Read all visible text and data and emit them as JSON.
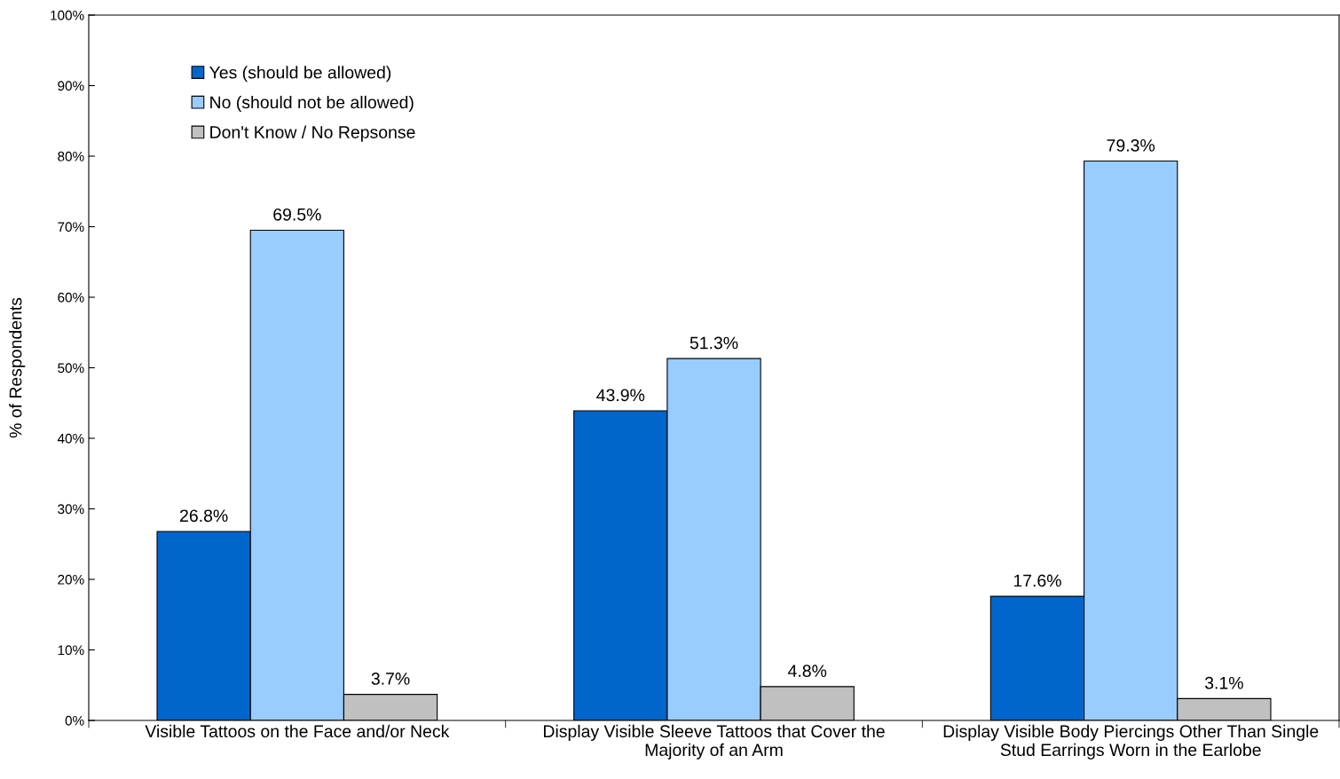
{
  "chart_data": {
    "type": "bar",
    "ylabel": "% of Respondents",
    "categories": [
      "Visible Tattoos on the Face and/or Neck",
      "Display Visible Sleeve Tattoos that Cover the\nMajority of an Arm",
      "Display Visible Body Piercings Other Than Single\nStud Earrings Worn in the Earlobe"
    ],
    "series": [
      {
        "name": "Yes (should be allowed)",
        "color": "#0066cc",
        "values": [
          26.8,
          43.9,
          17.6
        ],
        "value_labels": [
          "26.8%",
          "43.9%",
          "17.6%"
        ]
      },
      {
        "name": "No (should not be allowed)",
        "color": "#99ccff",
        "values": [
          69.5,
          51.3,
          79.3
        ],
        "value_labels": [
          "69.5%",
          "51.3%",
          "79.3%"
        ]
      },
      {
        "name": "Don't Know / No Repsonse",
        "color": "#c0c0c0",
        "values": [
          3.7,
          4.8,
          3.1
        ],
        "value_labels": [
          "3.7%",
          "4.8%",
          "3.1%"
        ]
      }
    ],
    "ylim": [
      0,
      100
    ],
    "yticks": [
      {
        "value": 0,
        "label": "0%"
      },
      {
        "value": 10,
        "label": "10%"
      },
      {
        "value": 20,
        "label": "20%"
      },
      {
        "value": 30,
        "label": "30%"
      },
      {
        "value": 40,
        "label": "40%"
      },
      {
        "value": 50,
        "label": "50%"
      },
      {
        "value": 60,
        "label": "60%"
      },
      {
        "value": 70,
        "label": "70%"
      },
      {
        "value": 80,
        "label": "80%"
      },
      {
        "value": 90,
        "label": "90%"
      },
      {
        "value": 100,
        "label": "100%"
      }
    ],
    "grid": false,
    "legend": "top left"
  }
}
